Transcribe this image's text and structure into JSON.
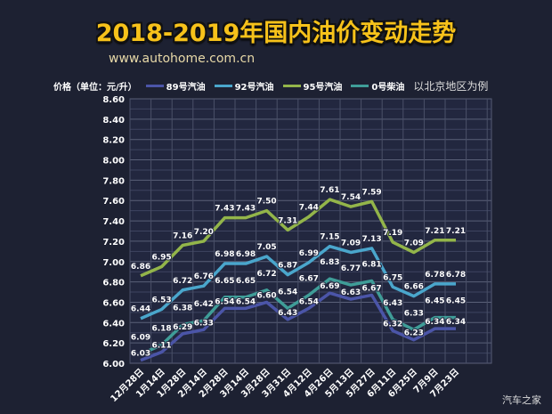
{
  "title": "2018-2019年国内油价变动走势",
  "url": "www.autohome.com.cn",
  "watermark": "汽车之家",
  "chart_data": {
    "type": "line",
    "title": "2018-2019年国内油价变动走势",
    "ylabel": "价格（单位：元/升）",
    "note": "以北京地区为例",
    "ylim": [
      6.0,
      8.6
    ],
    "yticks": [
      "6.00",
      "6.20",
      "6.40",
      "6.60",
      "6.80",
      "7.00",
      "7.20",
      "7.40",
      "7.60",
      "7.80",
      "8.00",
      "8.20",
      "8.40",
      "8.60"
    ],
    "grid": true,
    "legend_position": "top",
    "categories": [
      "12月28日",
      "1月14日",
      "1月28日",
      "2月14日",
      "2月28日",
      "3月14日",
      "3月28日",
      "3月31日",
      "4月12日",
      "4月26日",
      "5月13日",
      "5月27日",
      "6月11日",
      "6月25日",
      "7月9日",
      "7月23日"
    ],
    "series": [
      {
        "name": "89号汽油",
        "color": "#4b55a8",
        "values": [
          6.03,
          6.11,
          6.29,
          6.33,
          6.54,
          6.54,
          6.6,
          6.43,
          6.54,
          6.69,
          6.63,
          6.67,
          6.32,
          6.23,
          6.34,
          6.34
        ]
      },
      {
        "name": "92号汽油",
        "color": "#4aa6cc",
        "values": [
          6.44,
          6.53,
          6.72,
          6.76,
          6.98,
          6.98,
          7.05,
          6.87,
          6.99,
          7.15,
          7.09,
          7.13,
          6.75,
          6.66,
          6.78,
          6.78
        ]
      },
      {
        "name": "95号汽油",
        "color": "#93b54a",
        "values": [
          6.86,
          6.95,
          7.16,
          7.2,
          7.43,
          7.43,
          7.5,
          7.31,
          7.44,
          7.61,
          7.54,
          7.59,
          7.19,
          7.09,
          7.21,
          7.21
        ]
      },
      {
        "name": "0号柴油",
        "color": "#3f9d98",
        "values": [
          6.09,
          6.18,
          6.38,
          6.42,
          6.65,
          6.65,
          6.72,
          6.54,
          6.67,
          6.83,
          6.77,
          6.81,
          6.43,
          6.33,
          6.45,
          6.45
        ]
      }
    ]
  }
}
